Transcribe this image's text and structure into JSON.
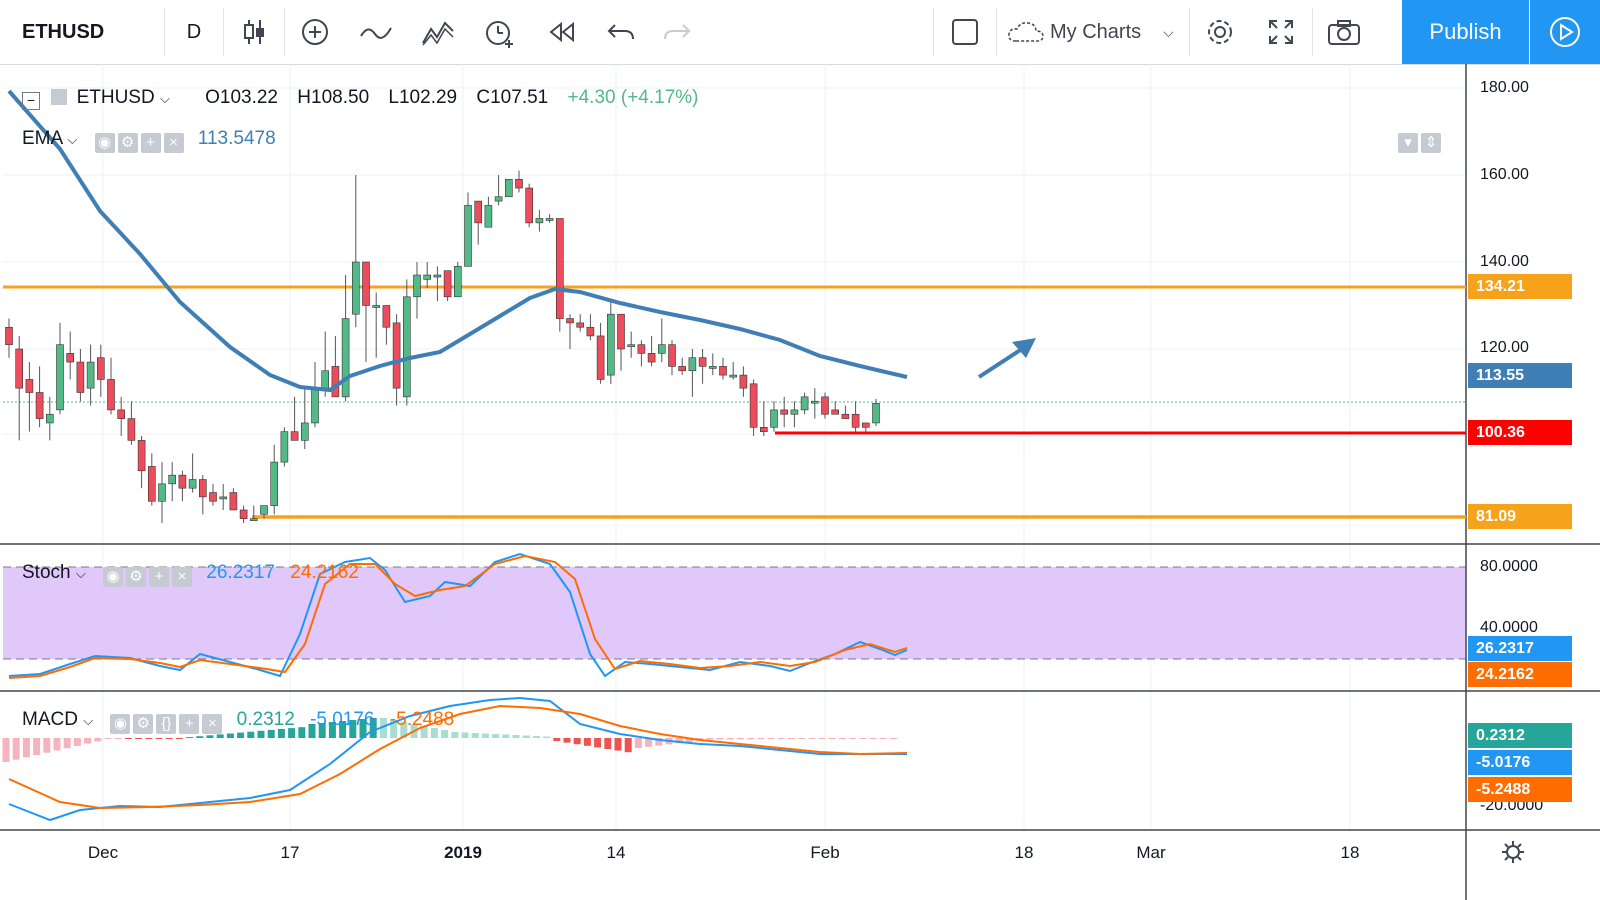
{
  "toolbar": {
    "symbol": "ETHUSD",
    "interval": "D",
    "my_charts": "My Charts",
    "publish": "Publish"
  },
  "legend": {
    "symbol": "ETHUSD",
    "open": "O103.22",
    "high": "H108.50",
    "low": "L102.29",
    "close": "C107.51",
    "change": "+4.30 (+4.17%)",
    "ema_label": "EMA",
    "ema_value": "113.5478",
    "stoch_label": "Stoch",
    "stoch_k": "26.2317",
    "stoch_d": "24.2162",
    "macd_label": "MACD",
    "macd_hist": "0.2312",
    "macd_line": "-5.0176",
    "macd_signal": "-5.2488"
  },
  "price_axis": {
    "ticks": [
      "180.00",
      "160.00",
      "140.00",
      "120.00"
    ],
    "labels": {
      "resistance": "134.21",
      "ema": "113.55",
      "support_red": "100.36",
      "support_low": "81.09"
    }
  },
  "stoch_axis": {
    "ticks": [
      "80.0000",
      "40.0000"
    ],
    "k_label": "26.2317",
    "d_label": "24.2162"
  },
  "macd_axis": {
    "ticks": [
      "-20.0000"
    ],
    "hist_label": "0.2312",
    "line_label": "-5.0176",
    "signal_label": "-5.2488"
  },
  "time_axis": [
    "Dec",
    "17",
    "2019",
    "14",
    "Feb",
    "18",
    "Mar",
    "18"
  ],
  "colors": {
    "up": "#53b987",
    "down": "#eb4d5c",
    "ema": "#3f7fb5",
    "orange": "#f7a21b",
    "red": "#ff0000",
    "stoch_k": "#2196f3",
    "stoch_d": "#ff6d00",
    "stoch_band": "#e1c8fb",
    "publish": "#2196f3"
  },
  "chart_data": {
    "type": "candlestick",
    "symbol": "ETHUSD",
    "interval": "D",
    "horizontal_lines": [
      134.21,
      100.36,
      81.09
    ],
    "ema_last": 113.5478,
    "last_bar": {
      "open": 103.22,
      "high": 108.5,
      "low": 102.29,
      "close": 107.51,
      "change": 4.3,
      "change_pct": 4.17
    },
    "candles": [
      [
        125,
        121,
        127,
        118
      ],
      [
        120,
        111,
        123,
        99
      ],
      [
        113,
        110,
        117,
        101
      ],
      [
        110,
        104,
        116,
        102
      ],
      [
        103,
        105,
        109,
        99
      ],
      [
        106,
        121,
        126,
        105
      ],
      [
        119,
        117,
        124,
        113
      ],
      [
        117,
        110,
        120,
        108
      ],
      [
        111,
        117,
        121,
        107
      ],
      [
        118,
        113,
        121,
        109
      ],
      [
        113,
        106,
        118,
        105
      ],
      [
        106,
        104,
        109,
        100
      ],
      [
        104,
        99,
        108,
        98
      ],
      [
        99,
        92,
        100,
        88
      ],
      [
        93,
        85,
        96,
        84
      ],
      [
        85,
        89,
        94,
        80
      ],
      [
        89,
        91,
        94,
        85
      ],
      [
        91,
        88,
        92,
        85
      ],
      [
        88,
        90,
        96,
        87
      ],
      [
        90,
        86,
        91,
        82
      ],
      [
        87,
        85,
        89,
        84
      ],
      [
        86,
        86,
        89,
        83
      ],
      [
        87,
        83,
        88,
        83
      ],
      [
        83,
        81,
        84,
        80
      ],
      [
        81,
        81,
        84,
        81
      ],
      [
        82,
        84,
        84,
        81
      ],
      [
        84,
        94,
        98,
        82
      ],
      [
        94,
        101,
        102,
        93
      ],
      [
        101,
        99,
        109,
        99
      ],
      [
        99,
        103,
        111,
        97
      ],
      [
        103,
        111,
        117,
        102
      ],
      [
        111,
        115,
        124,
        109
      ],
      [
        116,
        109,
        123,
        109
      ],
      [
        109,
        127,
        137,
        108
      ],
      [
        128,
        140,
        160,
        125
      ],
      [
        140,
        130,
        140,
        117
      ],
      [
        130,
        130,
        133,
        118
      ],
      [
        130,
        125,
        128,
        121
      ],
      [
        126,
        111,
        128,
        107
      ],
      [
        109,
        132,
        136,
        107
      ],
      [
        132,
        137,
        140,
        127
      ],
      [
        136,
        137,
        140,
        134
      ],
      [
        137,
        137,
        139,
        131
      ],
      [
        138,
        132,
        138,
        131
      ],
      [
        132,
        139,
        140,
        133
      ],
      [
        139,
        153,
        156,
        141
      ],
      [
        154,
        149,
        154,
        144
      ],
      [
        148,
        153,
        155,
        151
      ],
      [
        154,
        155,
        160,
        153
      ],
      [
        155,
        159,
        159,
        157
      ],
      [
        159,
        157,
        161,
        156
      ],
      [
        157,
        149,
        158,
        148
      ],
      [
        149,
        150,
        152,
        147
      ],
      [
        150,
        150,
        151,
        149
      ],
      [
        150,
        127,
        150,
        124
      ],
      [
        127,
        126,
        128,
        120
      ],
      [
        126,
        125,
        128,
        124
      ],
      [
        125,
        123,
        128,
        122
      ],
      [
        123,
        113,
        126,
        112
      ],
      [
        114,
        128,
        131,
        112
      ],
      [
        128,
        120,
        128,
        115
      ],
      [
        121,
        121,
        124,
        118
      ],
      [
        121,
        119,
        122,
        116
      ],
      [
        119,
        117,
        123,
        116
      ],
      [
        119,
        121,
        127,
        117
      ],
      [
        121,
        116,
        122,
        114
      ],
      [
        116,
        115,
        118,
        114
      ],
      [
        115,
        118,
        120,
        109
      ],
      [
        118,
        116,
        120,
        112
      ],
      [
        116,
        116,
        119,
        114
      ],
      [
        116,
        114,
        118,
        113
      ],
      [
        114,
        114,
        117,
        113
      ],
      [
        114,
        111,
        116,
        109
      ],
      [
        112,
        102,
        113,
        100
      ],
      [
        102,
        101,
        108,
        100
      ],
      [
        102,
        106,
        108,
        101
      ],
      [
        106,
        105,
        109,
        102
      ],
      [
        105,
        106,
        108,
        102
      ],
      [
        106,
        109,
        110,
        105
      ],
      [
        108,
        108,
        111,
        104
      ],
      [
        109,
        105,
        110,
        104
      ],
      [
        106,
        105,
        108,
        105
      ],
      [
        105,
        104,
        107,
        104
      ],
      [
        105,
        102,
        108,
        101
      ],
      [
        103,
        102,
        103,
        101
      ],
      [
        103,
        107.51,
        108.5,
        102.29
      ]
    ]
  }
}
